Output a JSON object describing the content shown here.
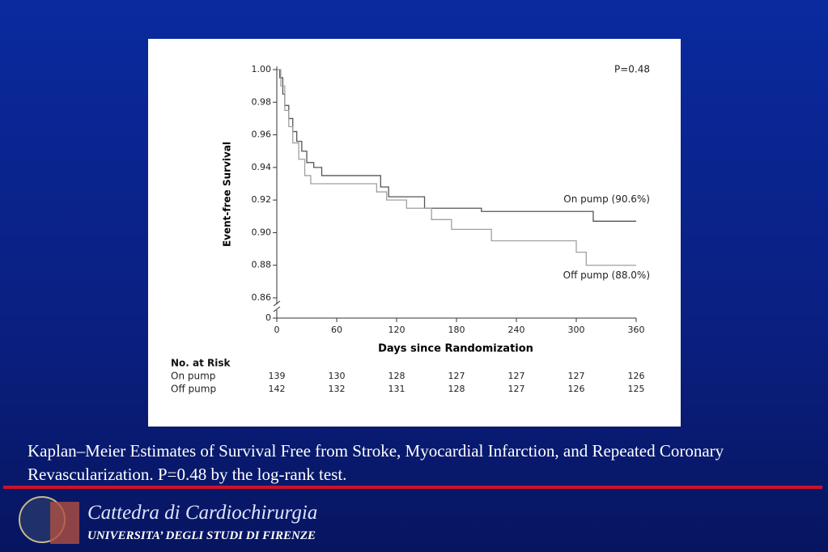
{
  "chart_data": {
    "type": "line",
    "step": true,
    "y_axis_label": "Event-free Survival",
    "x_axis_label": "Days since Randomization",
    "annotation": "P=0.48",
    "xlim": [
      0,
      360
    ],
    "xticks": [
      0,
      60,
      120,
      180,
      240,
      300,
      360
    ],
    "ylim": [
      0.86,
      1.0
    ],
    "yticks": [
      {
        "value": 1,
        "label": "1.00"
      },
      0.98,
      0.96,
      0.94,
      0.92,
      {
        "value": 0.9,
        "label": "0.90"
      },
      0.88,
      0.86
    ],
    "y_break_tick": 0,
    "series": [
      {
        "name": "On pump (90.6%)",
        "color": "#555555",
        "x": [
          0,
          3,
          6,
          8,
          12,
          16,
          20,
          25,
          30,
          37,
          45,
          104,
          112,
          148,
          205,
          317,
          360
        ],
        "values": [
          1.0,
          0.995,
          0.985,
          0.978,
          0.97,
          0.962,
          0.956,
          0.95,
          0.943,
          0.94,
          0.935,
          0.928,
          0.922,
          0.915,
          0.913,
          0.907,
          0.907
        ]
      },
      {
        "name": "Off pump (88.0%)",
        "color": "#a0a0a0",
        "x": [
          0,
          4,
          8,
          12,
          16,
          22,
          28,
          34,
          100,
          110,
          130,
          155,
          175,
          215,
          300,
          310,
          360
        ],
        "values": [
          1.0,
          0.99,
          0.975,
          0.965,
          0.955,
          0.945,
          0.935,
          0.93,
          0.925,
          0.92,
          0.915,
          0.908,
          0.902,
          0.895,
          0.888,
          0.88,
          0.88
        ]
      }
    ],
    "risk_table": {
      "title": "No. at Risk",
      "rows": [
        {
          "name": "On pump",
          "values": [
            139,
            130,
            128,
            127,
            127,
            127,
            126
          ]
        },
        {
          "name": "Off pump",
          "values": [
            142,
            132,
            131,
            128,
            127,
            126,
            125
          ]
        }
      ]
    }
  },
  "caption": "Kaplan–Meier Estimates of Survival Free from Stroke, Myocardial Infarction, and Repeated Coronary Revascularization. P=0.48 by the log-rank test.",
  "footer": {
    "title": "Cattedra di Cardiochirurgia",
    "subtitle": "UNIVERSITA’ DEGLI STUDI DI FIRENZE"
  }
}
